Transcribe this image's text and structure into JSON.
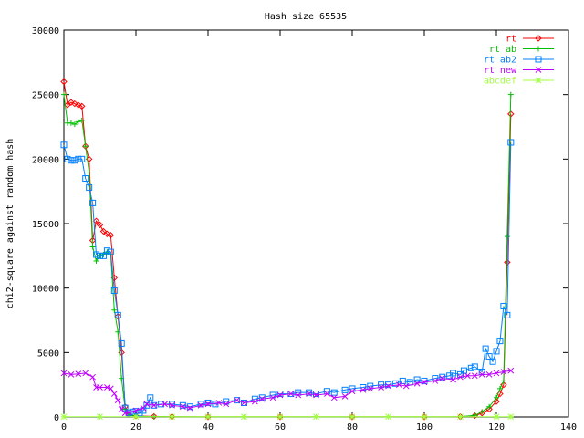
{
  "chart_data": {
    "type": "line",
    "title": "Hash size 65535",
    "xlabel": "",
    "ylabel": "chi2-square against random hash",
    "xlim": [
      0,
      140
    ],
    "ylim": [
      0,
      30000
    ],
    "x_ticks": [
      0,
      20,
      40,
      60,
      80,
      100,
      120,
      140
    ],
    "y_ticks": [
      0,
      5000,
      10000,
      15000,
      20000,
      25000,
      30000
    ],
    "x_tick_labels": [
      "0",
      "20",
      "40",
      "60",
      "80",
      "100",
      "120",
      "140"
    ],
    "y_tick_labels": [
      "0",
      "5000",
      "10000",
      "15000",
      "20000",
      "25000",
      "30000"
    ],
    "grid": false,
    "legend_position": "top-right",
    "series": [
      {
        "name": "rt",
        "color": "#ff0000",
        "marker": "diamond",
        "points": [
          [
            0,
            26000
          ],
          [
            1,
            24200
          ],
          [
            2,
            24400
          ],
          [
            3,
            24300
          ],
          [
            4,
            24200
          ],
          [
            5,
            24100
          ],
          [
            6,
            21000
          ],
          [
            7,
            20000
          ],
          [
            8,
            13700
          ],
          [
            9,
            15200
          ],
          [
            10,
            14900
          ],
          [
            11,
            14400
          ],
          [
            12,
            14200
          ],
          [
            13,
            14100
          ],
          [
            14,
            10800
          ],
          [
            15,
            7800
          ],
          [
            16,
            5000
          ],
          [
            17,
            800
          ],
          [
            18,
            200
          ],
          [
            20,
            80
          ],
          [
            25,
            40
          ],
          [
            30,
            20
          ],
          [
            40,
            10
          ],
          [
            60,
            10
          ],
          [
            80,
            10
          ],
          [
            100,
            10
          ],
          [
            110,
            20
          ],
          [
            114,
            100
          ],
          [
            116,
            300
          ],
          [
            118,
            600
          ],
          [
            120,
            1200
          ],
          [
            121,
            1800
          ],
          [
            122,
            2500
          ],
          [
            123,
            12000
          ],
          [
            124,
            23500
          ]
        ]
      },
      {
        "name": "rt ab",
        "color": "#00c000",
        "marker": "plus",
        "points": [
          [
            0,
            25000
          ],
          [
            1,
            22800
          ],
          [
            2,
            22800
          ],
          [
            3,
            22700
          ],
          [
            4,
            22900
          ],
          [
            5,
            23000
          ],
          [
            6,
            21000
          ],
          [
            7,
            19000
          ],
          [
            8,
            13200
          ],
          [
            9,
            12100
          ],
          [
            10,
            12500
          ],
          [
            11,
            12600
          ],
          [
            12,
            12800
          ],
          [
            13,
            12600
          ],
          [
            14,
            8300
          ],
          [
            15,
            6600
          ],
          [
            16,
            3000
          ],
          [
            17,
            600
          ],
          [
            18,
            150
          ],
          [
            20,
            60
          ],
          [
            25,
            30
          ],
          [
            30,
            15
          ],
          [
            40,
            10
          ],
          [
            60,
            10
          ],
          [
            80,
            10
          ],
          [
            100,
            10
          ],
          [
            110,
            20
          ],
          [
            114,
            120
          ],
          [
            116,
            400
          ],
          [
            118,
            800
          ],
          [
            120,
            1500
          ],
          [
            121,
            2200
          ],
          [
            122,
            2800
          ],
          [
            123,
            14000
          ],
          [
            124,
            25000
          ]
        ]
      },
      {
        "name": "rt ab2",
        "color": "#0080ff",
        "marker": "square",
        "points": [
          [
            0,
            21100
          ],
          [
            1,
            20000
          ],
          [
            2,
            19900
          ],
          [
            3,
            19900
          ],
          [
            4,
            20000
          ],
          [
            5,
            20000
          ],
          [
            6,
            18500
          ],
          [
            7,
            17800
          ],
          [
            8,
            16600
          ],
          [
            9,
            12600
          ],
          [
            10,
            12500
          ],
          [
            11,
            12500
          ],
          [
            12,
            12900
          ],
          [
            13,
            12800
          ],
          [
            14,
            9800
          ],
          [
            15,
            7900
          ],
          [
            16,
            5700
          ],
          [
            17,
            700
          ],
          [
            18,
            300
          ],
          [
            19,
            400
          ],
          [
            20,
            450
          ],
          [
            21,
            300
          ],
          [
            22,
            500
          ],
          [
            23,
            900
          ],
          [
            24,
            1500
          ],
          [
            25,
            900
          ],
          [
            27,
            1000
          ],
          [
            30,
            1000
          ],
          [
            33,
            900
          ],
          [
            35,
            800
          ],
          [
            38,
            1000
          ],
          [
            40,
            1100
          ],
          [
            42,
            1000
          ],
          [
            45,
            1200
          ],
          [
            48,
            1300
          ],
          [
            50,
            1100
          ],
          [
            53,
            1400
          ],
          [
            55,
            1500
          ],
          [
            58,
            1700
          ],
          [
            60,
            1800
          ],
          [
            63,
            1800
          ],
          [
            65,
            1900
          ],
          [
            68,
            1900
          ],
          [
            70,
            1800
          ],
          [
            73,
            2000
          ],
          [
            75,
            1900
          ],
          [
            78,
            2100
          ],
          [
            80,
            2200
          ],
          [
            83,
            2300
          ],
          [
            85,
            2400
          ],
          [
            88,
            2500
          ],
          [
            90,
            2500
          ],
          [
            92,
            2600
          ],
          [
            94,
            2800
          ],
          [
            96,
            2700
          ],
          [
            98,
            2900
          ],
          [
            100,
            2800
          ],
          [
            103,
            3000
          ],
          [
            105,
            3100
          ],
          [
            107,
            3200
          ],
          [
            108,
            3400
          ],
          [
            110,
            3300
          ],
          [
            111,
            3600
          ],
          [
            113,
            3800
          ],
          [
            114,
            3900
          ],
          [
            116,
            3500
          ],
          [
            117,
            5300
          ],
          [
            118,
            4700
          ],
          [
            119,
            4300
          ],
          [
            120,
            5100
          ],
          [
            121,
            5900
          ],
          [
            122,
            8600
          ],
          [
            123,
            7900
          ],
          [
            124,
            21300
          ]
        ]
      },
      {
        "name": "rt new",
        "color": "#c000ff",
        "marker": "cross",
        "points": [
          [
            0,
            3400
          ],
          [
            2,
            3300
          ],
          [
            4,
            3350
          ],
          [
            6,
            3400
          ],
          [
            8,
            3100
          ],
          [
            9,
            2300
          ],
          [
            10,
            2300
          ],
          [
            12,
            2300
          ],
          [
            13,
            2200
          ],
          [
            14,
            1800
          ],
          [
            15,
            1300
          ],
          [
            16,
            600
          ],
          [
            17,
            300
          ],
          [
            18,
            350
          ],
          [
            20,
            500
          ],
          [
            22,
            700
          ],
          [
            23,
            1000
          ],
          [
            25,
            900
          ],
          [
            28,
            1000
          ],
          [
            30,
            900
          ],
          [
            33,
            800
          ],
          [
            35,
            700
          ],
          [
            38,
            900
          ],
          [
            40,
            1000
          ],
          [
            43,
            1100
          ],
          [
            45,
            1000
          ],
          [
            48,
            1300
          ],
          [
            50,
            1100
          ],
          [
            53,
            1200
          ],
          [
            55,
            1400
          ],
          [
            58,
            1500
          ],
          [
            60,
            1700
          ],
          [
            63,
            1800
          ],
          [
            65,
            1700
          ],
          [
            68,
            1800
          ],
          [
            70,
            1700
          ],
          [
            73,
            1800
          ],
          [
            75,
            1500
          ],
          [
            78,
            1600
          ],
          [
            80,
            2000
          ],
          [
            83,
            2100
          ],
          [
            85,
            2200
          ],
          [
            88,
            2300
          ],
          [
            90,
            2400
          ],
          [
            93,
            2500
          ],
          [
            95,
            2400
          ],
          [
            98,
            2600
          ],
          [
            100,
            2700
          ],
          [
            103,
            2800
          ],
          [
            105,
            3000
          ],
          [
            108,
            2900
          ],
          [
            110,
            3100
          ],
          [
            112,
            3200
          ],
          [
            114,
            3200
          ],
          [
            116,
            3300
          ],
          [
            118,
            3300
          ],
          [
            120,
            3400
          ],
          [
            122,
            3500
          ],
          [
            124,
            3600
          ]
        ]
      },
      {
        "name": "abcdef",
        "color": "#a0ff40",
        "marker": "star",
        "points": [
          [
            0,
            20
          ],
          [
            10,
            20
          ],
          [
            20,
            20
          ],
          [
            30,
            20
          ],
          [
            40,
            20
          ],
          [
            50,
            20
          ],
          [
            60,
            20
          ],
          [
            70,
            20
          ],
          [
            80,
            20
          ],
          [
            90,
            20
          ],
          [
            100,
            20
          ],
          [
            110,
            20
          ],
          [
            120,
            20
          ],
          [
            124,
            20
          ]
        ]
      }
    ]
  }
}
